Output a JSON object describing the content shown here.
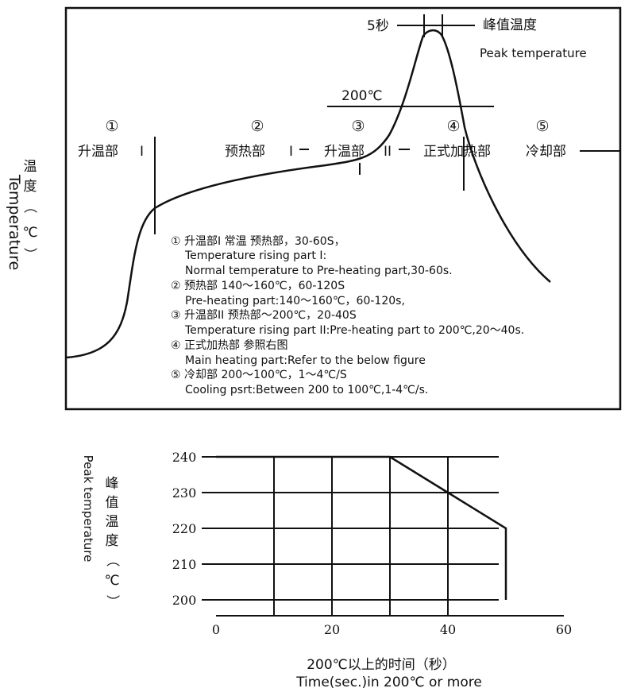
{
  "profile": {
    "y_axis_cn": [
      "温",
      "度",
      "（",
      "℃",
      "）"
    ],
    "y_axis_en": "Temperature",
    "peak_time_label": "5秒",
    "peak_label_cn": "峰值温度",
    "peak_label_en": "Peak temperature",
    "temp_200": "200℃",
    "zones": [
      {
        "num": "①",
        "label": "升温部",
        "sep": "I"
      },
      {
        "num": "②",
        "label": "预热部",
        "sep": "I"
      },
      {
        "num": "③",
        "label": "升温部",
        "sep": "II"
      },
      {
        "num": "④",
        "label": "正式加热部",
        "sep": ""
      },
      {
        "num": "⑤",
        "label": "冷却部",
        "sep": ""
      }
    ],
    "notes": [
      {
        "cn": "①  升温部I      常温     预热部，30-60S，",
        "en": [
          "Temperature rising part I:",
          "Normal temperature to Pre-heating part,30-60s."
        ]
      },
      {
        "cn": "②  预热部    140～160℃，60-120S",
        "en": [
          "Pre-heating part:140～160℃，60-120s,"
        ]
      },
      {
        "cn": "③  升温部II 预热部～200℃，20-40S",
        "en": [
          "Temperature rising part II:Pre-heating part to 200℃,20～40s."
        ]
      },
      {
        "cn": "④  正式加热部  参照右图",
        "en": [
          "Main heating part:Refer to the below figure"
        ]
      },
      {
        "cn": "⑤  冷却部      200～100℃，1～4℃/S",
        "en": [
          "Cooling psrt:Between 200 to 100℃,1-4℃/s."
        ]
      }
    ]
  },
  "chart_data": {
    "type": "line",
    "y_axis_cn": [
      "峰",
      "值",
      "温",
      "度",
      "（",
      "℃",
      "）"
    ],
    "y_axis_en": "Peak temperature",
    "xlabel_cn": "200℃以上的时间（秒）",
    "xlabel_en": "Time(sec.)in 200℃ or more",
    "x_ticks": [
      "0",
      "20",
      "40",
      "60"
    ],
    "y_ticks": [
      "240",
      "230",
      "220",
      "210",
      "200"
    ],
    "xlim": [
      0,
      60
    ],
    "ylim": [
      200,
      240
    ],
    "series": [
      {
        "x": [
          0,
          30,
          40,
          50,
          50
        ],
        "y": [
          240,
          240,
          230,
          220,
          200
        ]
      }
    ]
  }
}
